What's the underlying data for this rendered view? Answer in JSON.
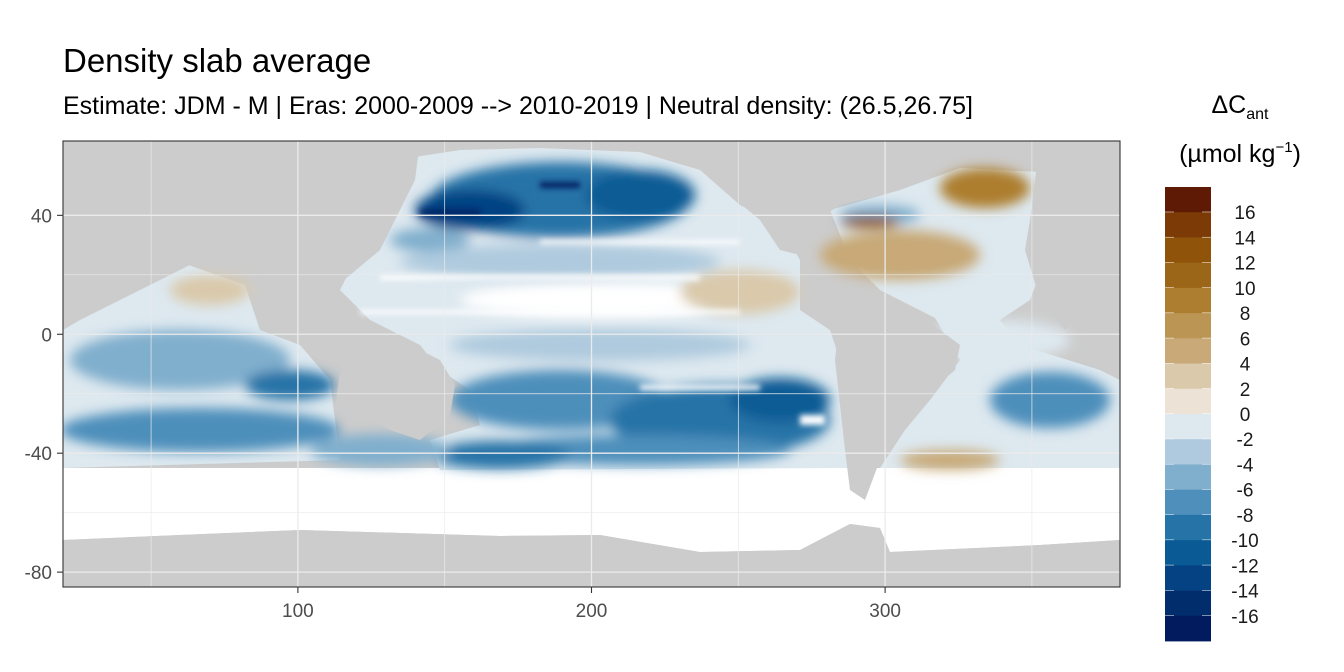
{
  "chart_data": {
    "type": "heatmap",
    "title": "Density slab average",
    "subtitle": "Estimate: JDM - M | Eras: 2000-2009 --> 2010-2019 | Neutral density: (26.5,26.75]",
    "xlabel": "",
    "ylabel": "",
    "xlim": [
      20,
      380
    ],
    "ylim": [
      -85,
      65
    ],
    "x_ticks": [
      100,
      200,
      300
    ],
    "y_ticks": [
      40,
      0,
      -40,
      -80
    ],
    "grid": true,
    "legend": {
      "placement": "right",
      "title_main": "ΔC",
      "title_sub": "ant",
      "unit_pre": "(µmol kg",
      "unit_sup": "−1",
      "unit_post": ")",
      "bins": [
        {
          "label": "16",
          "color": "#5e1a04"
        },
        {
          "label": "14",
          "color": "#7c3a06"
        },
        {
          "label": "12",
          "color": "#8f5309"
        },
        {
          "label": "10",
          "color": "#9c6618"
        },
        {
          "label": "8",
          "color": "#ad7e2f"
        },
        {
          "label": "6",
          "color": "#bb9553"
        },
        {
          "label": "4",
          "color": "#c8a977"
        },
        {
          "label": "2",
          "color": "#dac9ab"
        },
        {
          "label": "0",
          "color": "#ece3d6"
        },
        {
          "label": "-2",
          "color": "#dde8ef"
        },
        {
          "label": "-4",
          "color": "#afcade"
        },
        {
          "label": "-6",
          "color": "#80afcd"
        },
        {
          "label": "-8",
          "color": "#4e8fbb"
        },
        {
          "label": "-10",
          "color": "#2673a7"
        },
        {
          "label": "-12",
          "color": "#0a5b95"
        },
        {
          "label": "-14",
          "color": "#054283"
        },
        {
          "label": "-16",
          "color": "#022d6d"
        },
        {
          "label": "",
          "color": "#021a5e"
        }
      ]
    },
    "background_land_color": "#cccccc",
    "no_data_color": "#ffffff",
    "regions": [
      {
        "id": "north-pacific",
        "lon": [
          120,
          240
        ],
        "lat": [
          20,
          62
        ],
        "value": -10
      },
      {
        "id": "subtropical-north-pacific",
        "lon": [
          120,
          255
        ],
        "lat": [
          -5,
          20
        ],
        "value": -2
      },
      {
        "id": "north-atlantic",
        "lon": [
          285,
          360
        ],
        "lat": [
          10,
          60
        ],
        "value": 4
      },
      {
        "id": "tropical-atlantic",
        "lon": [
          310,
          370
        ],
        "lat": [
          -15,
          10
        ],
        "value": -2
      },
      {
        "id": "indian-ocean",
        "lon": [
          25,
          115
        ],
        "lat": [
          -45,
          20
        ],
        "value": -6
      },
      {
        "id": "south-pacific",
        "lon": [
          150,
          290
        ],
        "lat": [
          -50,
          -10
        ],
        "value": -10
      },
      {
        "id": "south-atlantic",
        "lon": [
          300,
          380
        ],
        "lat": [
          -45,
          -15
        ],
        "value": -2
      }
    ]
  }
}
